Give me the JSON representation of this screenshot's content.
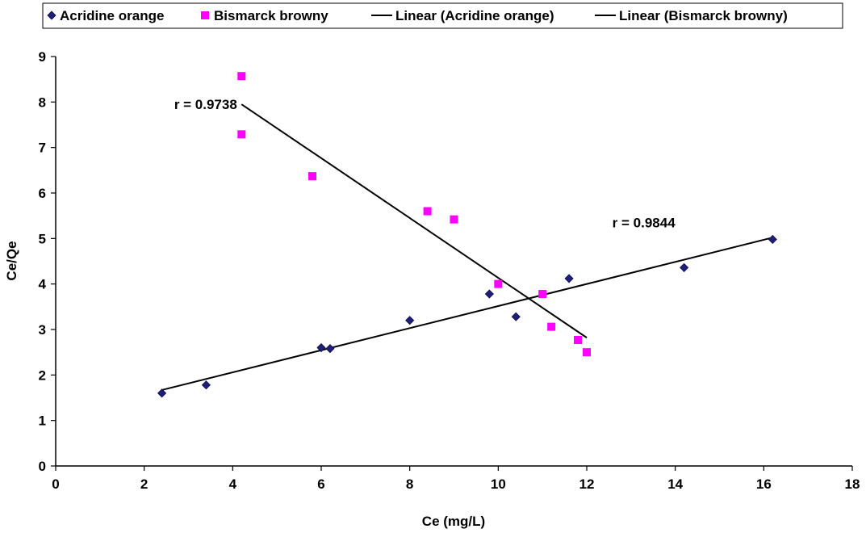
{
  "chart_data": {
    "type": "scatter",
    "title": "",
    "xlabel": "Ce (mg/L)",
    "ylabel": "Ce/Qe",
    "xlim": [
      0,
      18
    ],
    "ylim": [
      0,
      9
    ],
    "x_ticks": [
      0,
      2,
      4,
      6,
      8,
      10,
      12,
      14,
      16,
      18
    ],
    "y_ticks": [
      0,
      1,
      2,
      3,
      4,
      5,
      6,
      7,
      8,
      9
    ],
    "grid": false,
    "legend_position": "top",
    "series": [
      {
        "name": "Acridine orange",
        "marker": "diamond",
        "color": "#1f1f7a",
        "points": [
          {
            "x": 2.4,
            "y": 1.6
          },
          {
            "x": 3.4,
            "y": 1.78
          },
          {
            "x": 6.0,
            "y": 2.6
          },
          {
            "x": 6.2,
            "y": 2.58
          },
          {
            "x": 8.0,
            "y": 3.2
          },
          {
            "x": 9.8,
            "y": 3.78
          },
          {
            "x": 10.4,
            "y": 3.28
          },
          {
            "x": 11.6,
            "y": 4.12
          },
          {
            "x": 14.2,
            "y": 4.36
          },
          {
            "x": 16.2,
            "y": 4.98
          }
        ]
      },
      {
        "name": "Bismarck browny",
        "marker": "square",
        "color": "#ff00ff",
        "points": [
          {
            "x": 4.2,
            "y": 8.57
          },
          {
            "x": 4.2,
            "y": 7.29
          },
          {
            "x": 5.8,
            "y": 6.37
          },
          {
            "x": 8.4,
            "y": 5.6
          },
          {
            "x": 9.0,
            "y": 5.42
          },
          {
            "x": 10.0,
            "y": 4.0
          },
          {
            "x": 11.0,
            "y": 3.78
          },
          {
            "x": 11.2,
            "y": 3.06
          },
          {
            "x": 11.8,
            "y": 2.77
          },
          {
            "x": 12.0,
            "y": 2.5
          }
        ]
      }
    ],
    "trendlines": [
      {
        "name": "Linear (Acridine orange)",
        "color": "#000000",
        "from": {
          "x": 2.4,
          "y": 1.67
        },
        "to": {
          "x": 16.2,
          "y": 5.02
        }
      },
      {
        "name": "Linear (Bismarck browny)",
        "color": "#000000",
        "from": {
          "x": 4.2,
          "y": 7.95
        },
        "to": {
          "x": 12.0,
          "y": 2.82
        }
      }
    ],
    "annotations": [
      {
        "text": "r = 0.9738",
        "x": 4.1,
        "y": 7.95
      },
      {
        "text": "r = 0.9844",
        "x": 14.0,
        "y": 5.35
      }
    ]
  }
}
